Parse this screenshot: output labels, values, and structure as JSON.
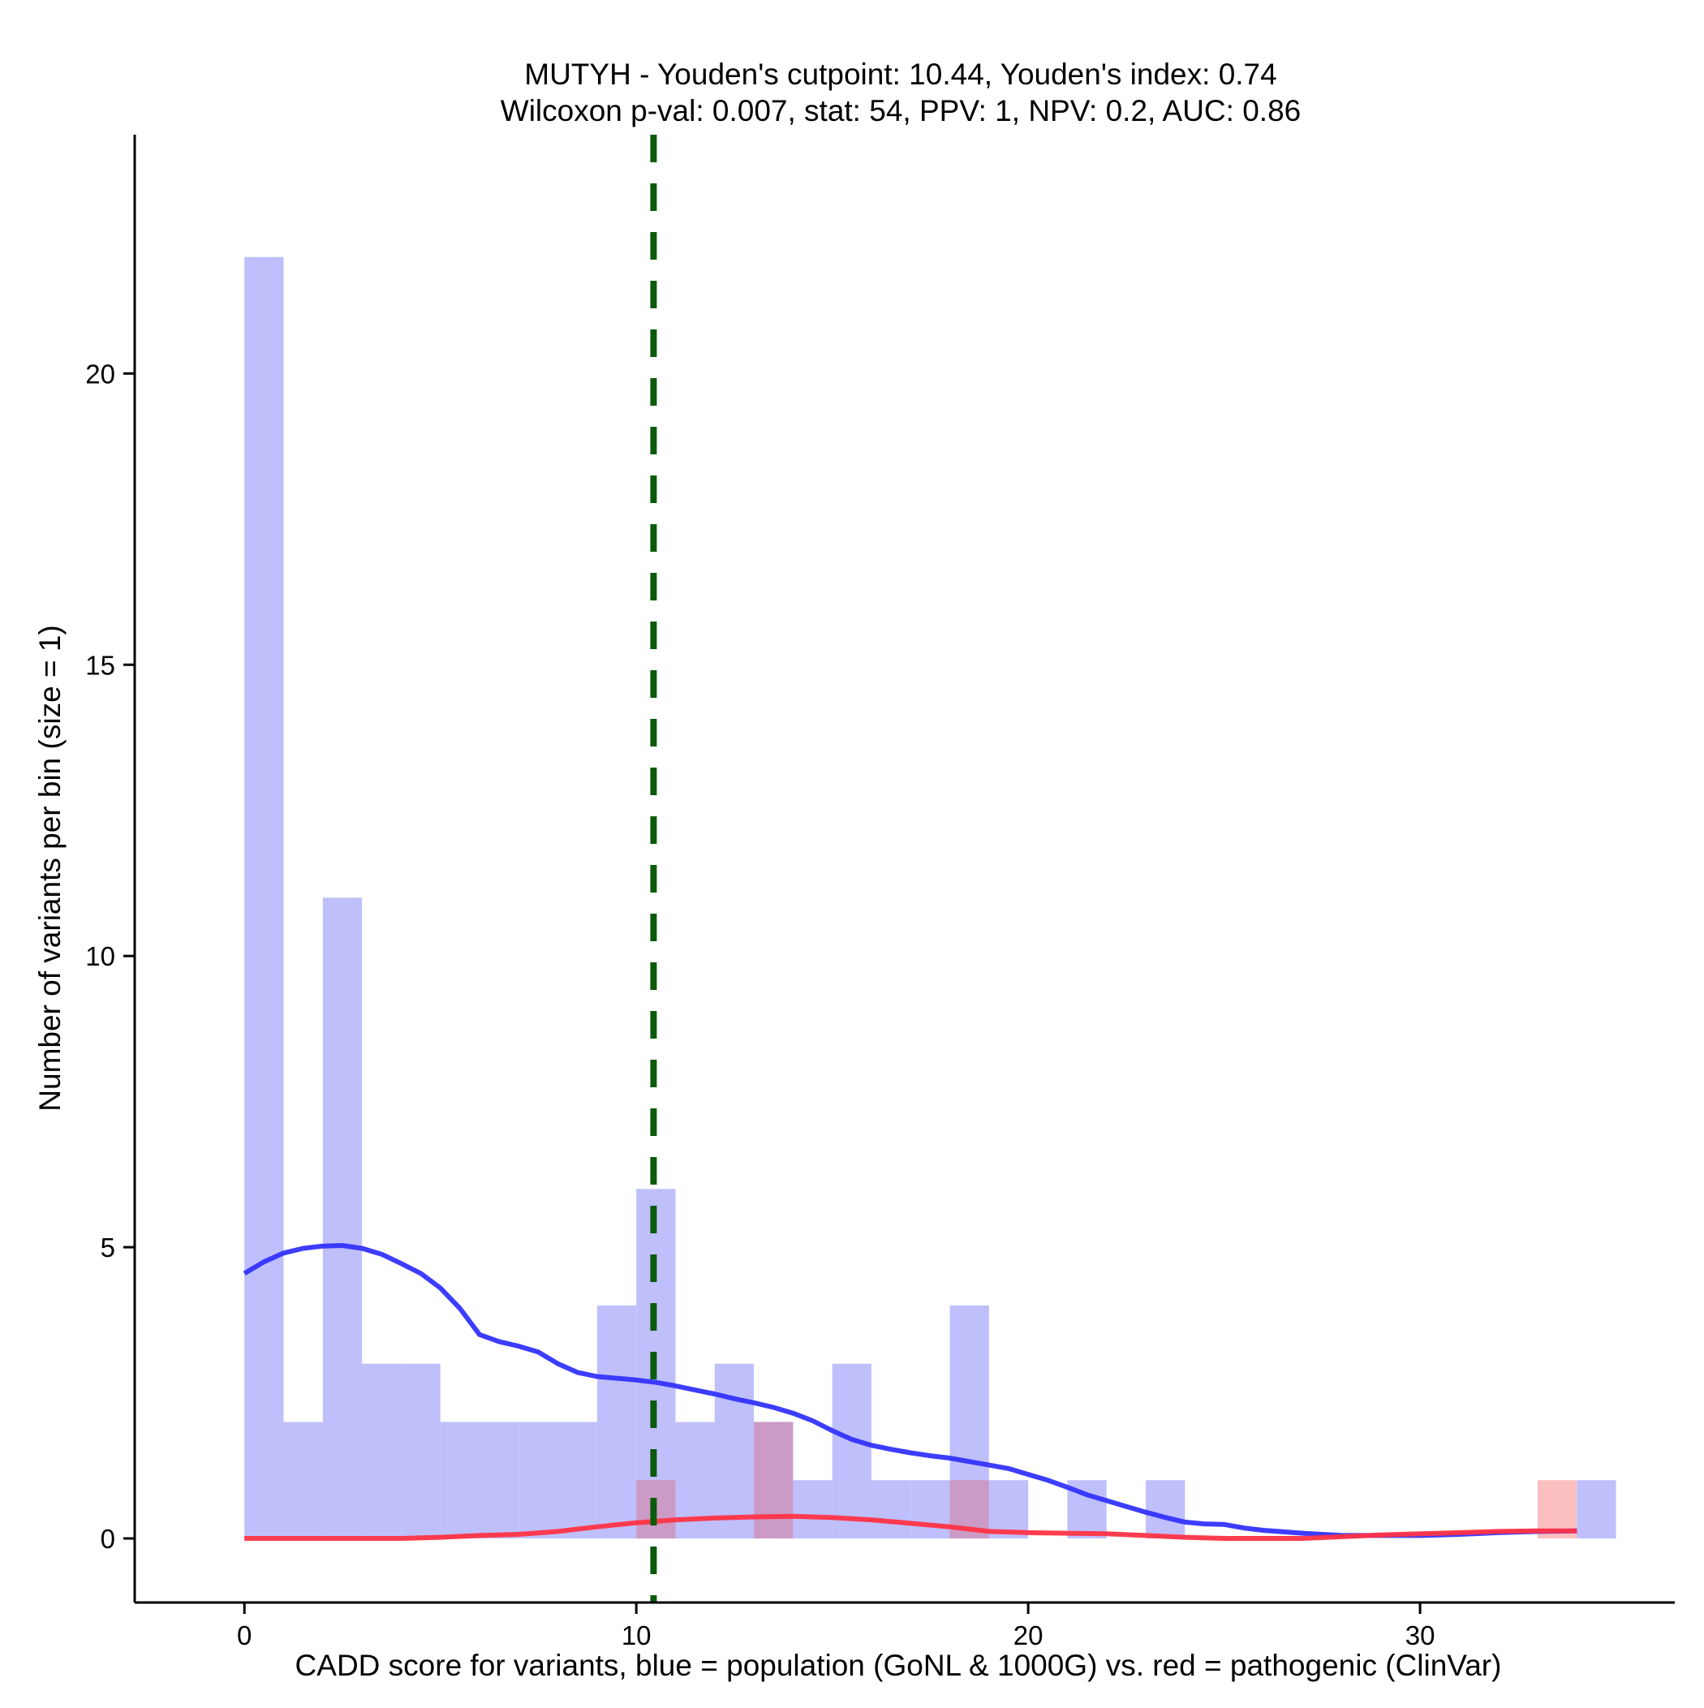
{
  "chart_data": {
    "type": "histogram",
    "title_lines": [
      "MUTYH - Youden's cutpoint: 10.44, Youden's index: 0.74",
      "Wilcoxon p-val: 0.007, stat: 54, PPV: 1, NPV: 0.2, AUC: 0.86"
    ],
    "xlabel": "CADD score for variants, blue = population (GoNL & 1000G) vs. red = pathogenic (ClinVar)",
    "ylabel": "Number of variants per bin (size = 1)",
    "xlim": [
      -2.8,
      36.5
    ],
    "ylim": [
      -1.1,
      24.1
    ],
    "x_ticks": [
      0,
      10,
      20,
      30
    ],
    "y_ticks": [
      0,
      5,
      10,
      15,
      20
    ],
    "bin_width": 1,
    "cutpoint": 10.44,
    "colors": {
      "population_bar": "#bfbffb",
      "pathogenic_bar": "#fcbfbf",
      "overlap_bar": "#cc9bc5",
      "population_line": "#3333ff",
      "pathogenic_line": "#ff3344",
      "cutpoint_line": "#0b5a0b"
    },
    "series": [
      {
        "name": "blue = population (GoNL & 1000G)",
        "bins": [
          {
            "x0": 0,
            "count": 22
          },
          {
            "x0": 1,
            "count": 2
          },
          {
            "x0": 2,
            "count": 11
          },
          {
            "x0": 3,
            "count": 3
          },
          {
            "x0": 4,
            "count": 3
          },
          {
            "x0": 5,
            "count": 2
          },
          {
            "x0": 6,
            "count": 2
          },
          {
            "x0": 7,
            "count": 2
          },
          {
            "x0": 8,
            "count": 2
          },
          {
            "x0": 9,
            "count": 4
          },
          {
            "x0": 10,
            "count": 6
          },
          {
            "x0": 11,
            "count": 2
          },
          {
            "x0": 12,
            "count": 3
          },
          {
            "x0": 13,
            "count": 2
          },
          {
            "x0": 14,
            "count": 1
          },
          {
            "x0": 15,
            "count": 3
          },
          {
            "x0": 16,
            "count": 1
          },
          {
            "x0": 17,
            "count": 1
          },
          {
            "x0": 18,
            "count": 4
          },
          {
            "x0": 19,
            "count": 1
          },
          {
            "x0": 21,
            "count": 1
          },
          {
            "x0": 23,
            "count": 1
          },
          {
            "x0": 34,
            "count": 1
          }
        ],
        "smooth": [
          [
            0,
            4.55
          ],
          [
            0.5,
            4.75
          ],
          [
            1,
            4.9
          ],
          [
            1.5,
            4.98
          ],
          [
            2,
            5.02
          ],
          [
            2.5,
            5.03
          ],
          [
            3,
            4.98
          ],
          [
            3.5,
            4.88
          ],
          [
            4,
            4.72
          ],
          [
            4.5,
            4.55
          ],
          [
            5,
            4.3
          ],
          [
            5.5,
            3.95
          ],
          [
            6,
            3.5
          ],
          [
            6.5,
            3.38
          ],
          [
            7,
            3.3
          ],
          [
            7.5,
            3.2
          ],
          [
            8,
            3.0
          ],
          [
            8.5,
            2.85
          ],
          [
            9,
            2.78
          ],
          [
            9.5,
            2.75
          ],
          [
            10,
            2.72
          ],
          [
            10.5,
            2.68
          ],
          [
            11,
            2.62
          ],
          [
            11.5,
            2.55
          ],
          [
            12,
            2.48
          ],
          [
            12.5,
            2.4
          ],
          [
            13,
            2.33
          ],
          [
            13.5,
            2.25
          ],
          [
            14,
            2.15
          ],
          [
            14.5,
            2.02
          ],
          [
            15,
            1.85
          ],
          [
            15.5,
            1.7
          ],
          [
            16,
            1.6
          ],
          [
            16.5,
            1.53
          ],
          [
            17,
            1.47
          ],
          [
            17.5,
            1.42
          ],
          [
            18,
            1.38
          ],
          [
            18.5,
            1.32
          ],
          [
            19,
            1.26
          ],
          [
            19.5,
            1.2
          ],
          [
            20,
            1.1
          ],
          [
            20.5,
            1.0
          ],
          [
            21,
            0.88
          ],
          [
            21.5,
            0.75
          ],
          [
            22,
            0.65
          ],
          [
            22.5,
            0.55
          ],
          [
            23,
            0.45
          ],
          [
            23.5,
            0.36
          ],
          [
            24,
            0.28
          ],
          [
            24.5,
            0.25
          ],
          [
            25,
            0.24
          ],
          [
            25.5,
            0.18
          ],
          [
            26,
            0.14
          ],
          [
            27,
            0.09
          ],
          [
            28,
            0.05
          ],
          [
            29,
            0.05
          ],
          [
            30,
            0.05
          ],
          [
            31,
            0.07
          ],
          [
            32,
            0.1
          ],
          [
            33,
            0.12
          ],
          [
            34,
            0.13
          ]
        ]
      },
      {
        "name": "red = pathogenic (ClinVar)",
        "bins": [
          {
            "x0": 10,
            "count": 1
          },
          {
            "x0": 13,
            "count": 2
          },
          {
            "x0": 18,
            "count": 1
          },
          {
            "x0": 33,
            "count": 1
          }
        ],
        "smooth": [
          [
            0,
            0.0
          ],
          [
            2,
            0.0
          ],
          [
            4,
            0.0
          ],
          [
            5,
            0.02
          ],
          [
            6,
            0.05
          ],
          [
            7,
            0.07
          ],
          [
            8,
            0.12
          ],
          [
            9,
            0.2
          ],
          [
            10,
            0.27
          ],
          [
            11,
            0.32
          ],
          [
            12,
            0.35
          ],
          [
            13,
            0.37
          ],
          [
            14,
            0.38
          ],
          [
            15,
            0.36
          ],
          [
            16,
            0.32
          ],
          [
            17,
            0.26
          ],
          [
            18,
            0.2
          ],
          [
            19,
            0.12
          ],
          [
            20,
            0.1
          ],
          [
            21,
            0.09
          ],
          [
            22,
            0.08
          ],
          [
            23,
            0.05
          ],
          [
            24,
            0.02
          ],
          [
            25,
            0.0
          ],
          [
            26,
            0.0
          ],
          [
            27,
            0.0
          ],
          [
            28,
            0.03
          ],
          [
            29,
            0.06
          ],
          [
            30,
            0.08
          ],
          [
            31,
            0.1
          ],
          [
            32,
            0.12
          ],
          [
            33,
            0.13
          ],
          [
            34,
            0.13
          ]
        ]
      }
    ]
  }
}
